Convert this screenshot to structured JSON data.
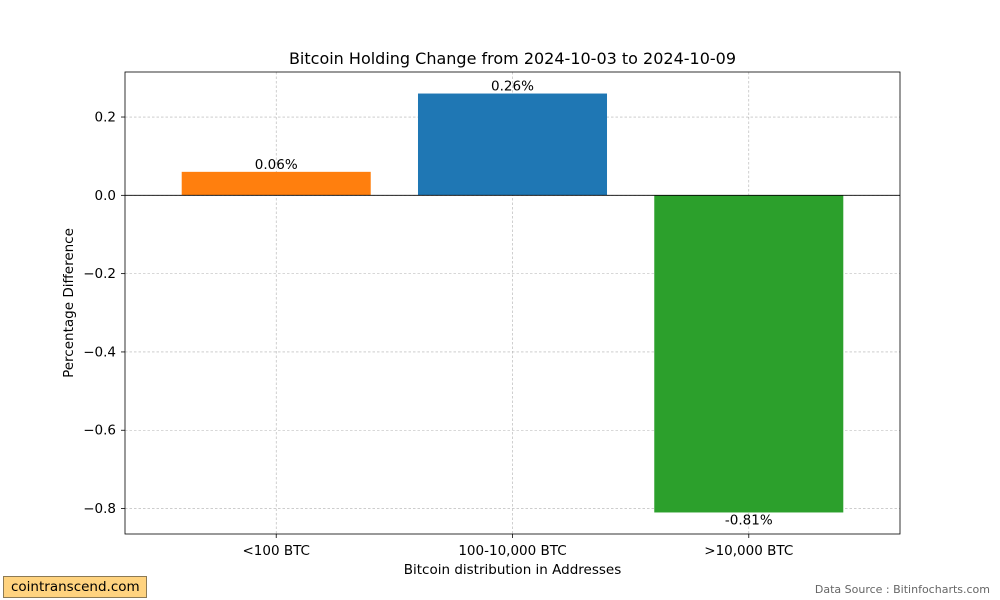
{
  "chart_data": {
    "type": "bar",
    "title": "Bitcoin Holding Change from 2024-10-03 to 2024-10-09",
    "xlabel": "Bitcoin distribution in Addresses",
    "ylabel": "Percentage Difference",
    "categories": [
      "<100 BTC",
      "100-10,000 BTC",
      ">10,000 BTC"
    ],
    "values": [
      0.06,
      0.26,
      -0.81
    ],
    "data_labels": [
      "0.06%",
      "0.26%",
      "-0.81%"
    ],
    "colors": [
      "#ff7f0e",
      "#1f77b4",
      "#2ca02c"
    ],
    "ylim": [
      -0.865,
      0.315
    ],
    "yticks": [
      0.2,
      0.0,
      -0.2,
      -0.4,
      -0.6,
      -0.8
    ],
    "ytick_labels": [
      "0.2",
      "0.0",
      "−0.2",
      "−0.4",
      "−0.6",
      "−0.8"
    ],
    "grid": true
  },
  "watermark": "cointranscend.com",
  "source": "Data Source : Bitinfocharts.com"
}
